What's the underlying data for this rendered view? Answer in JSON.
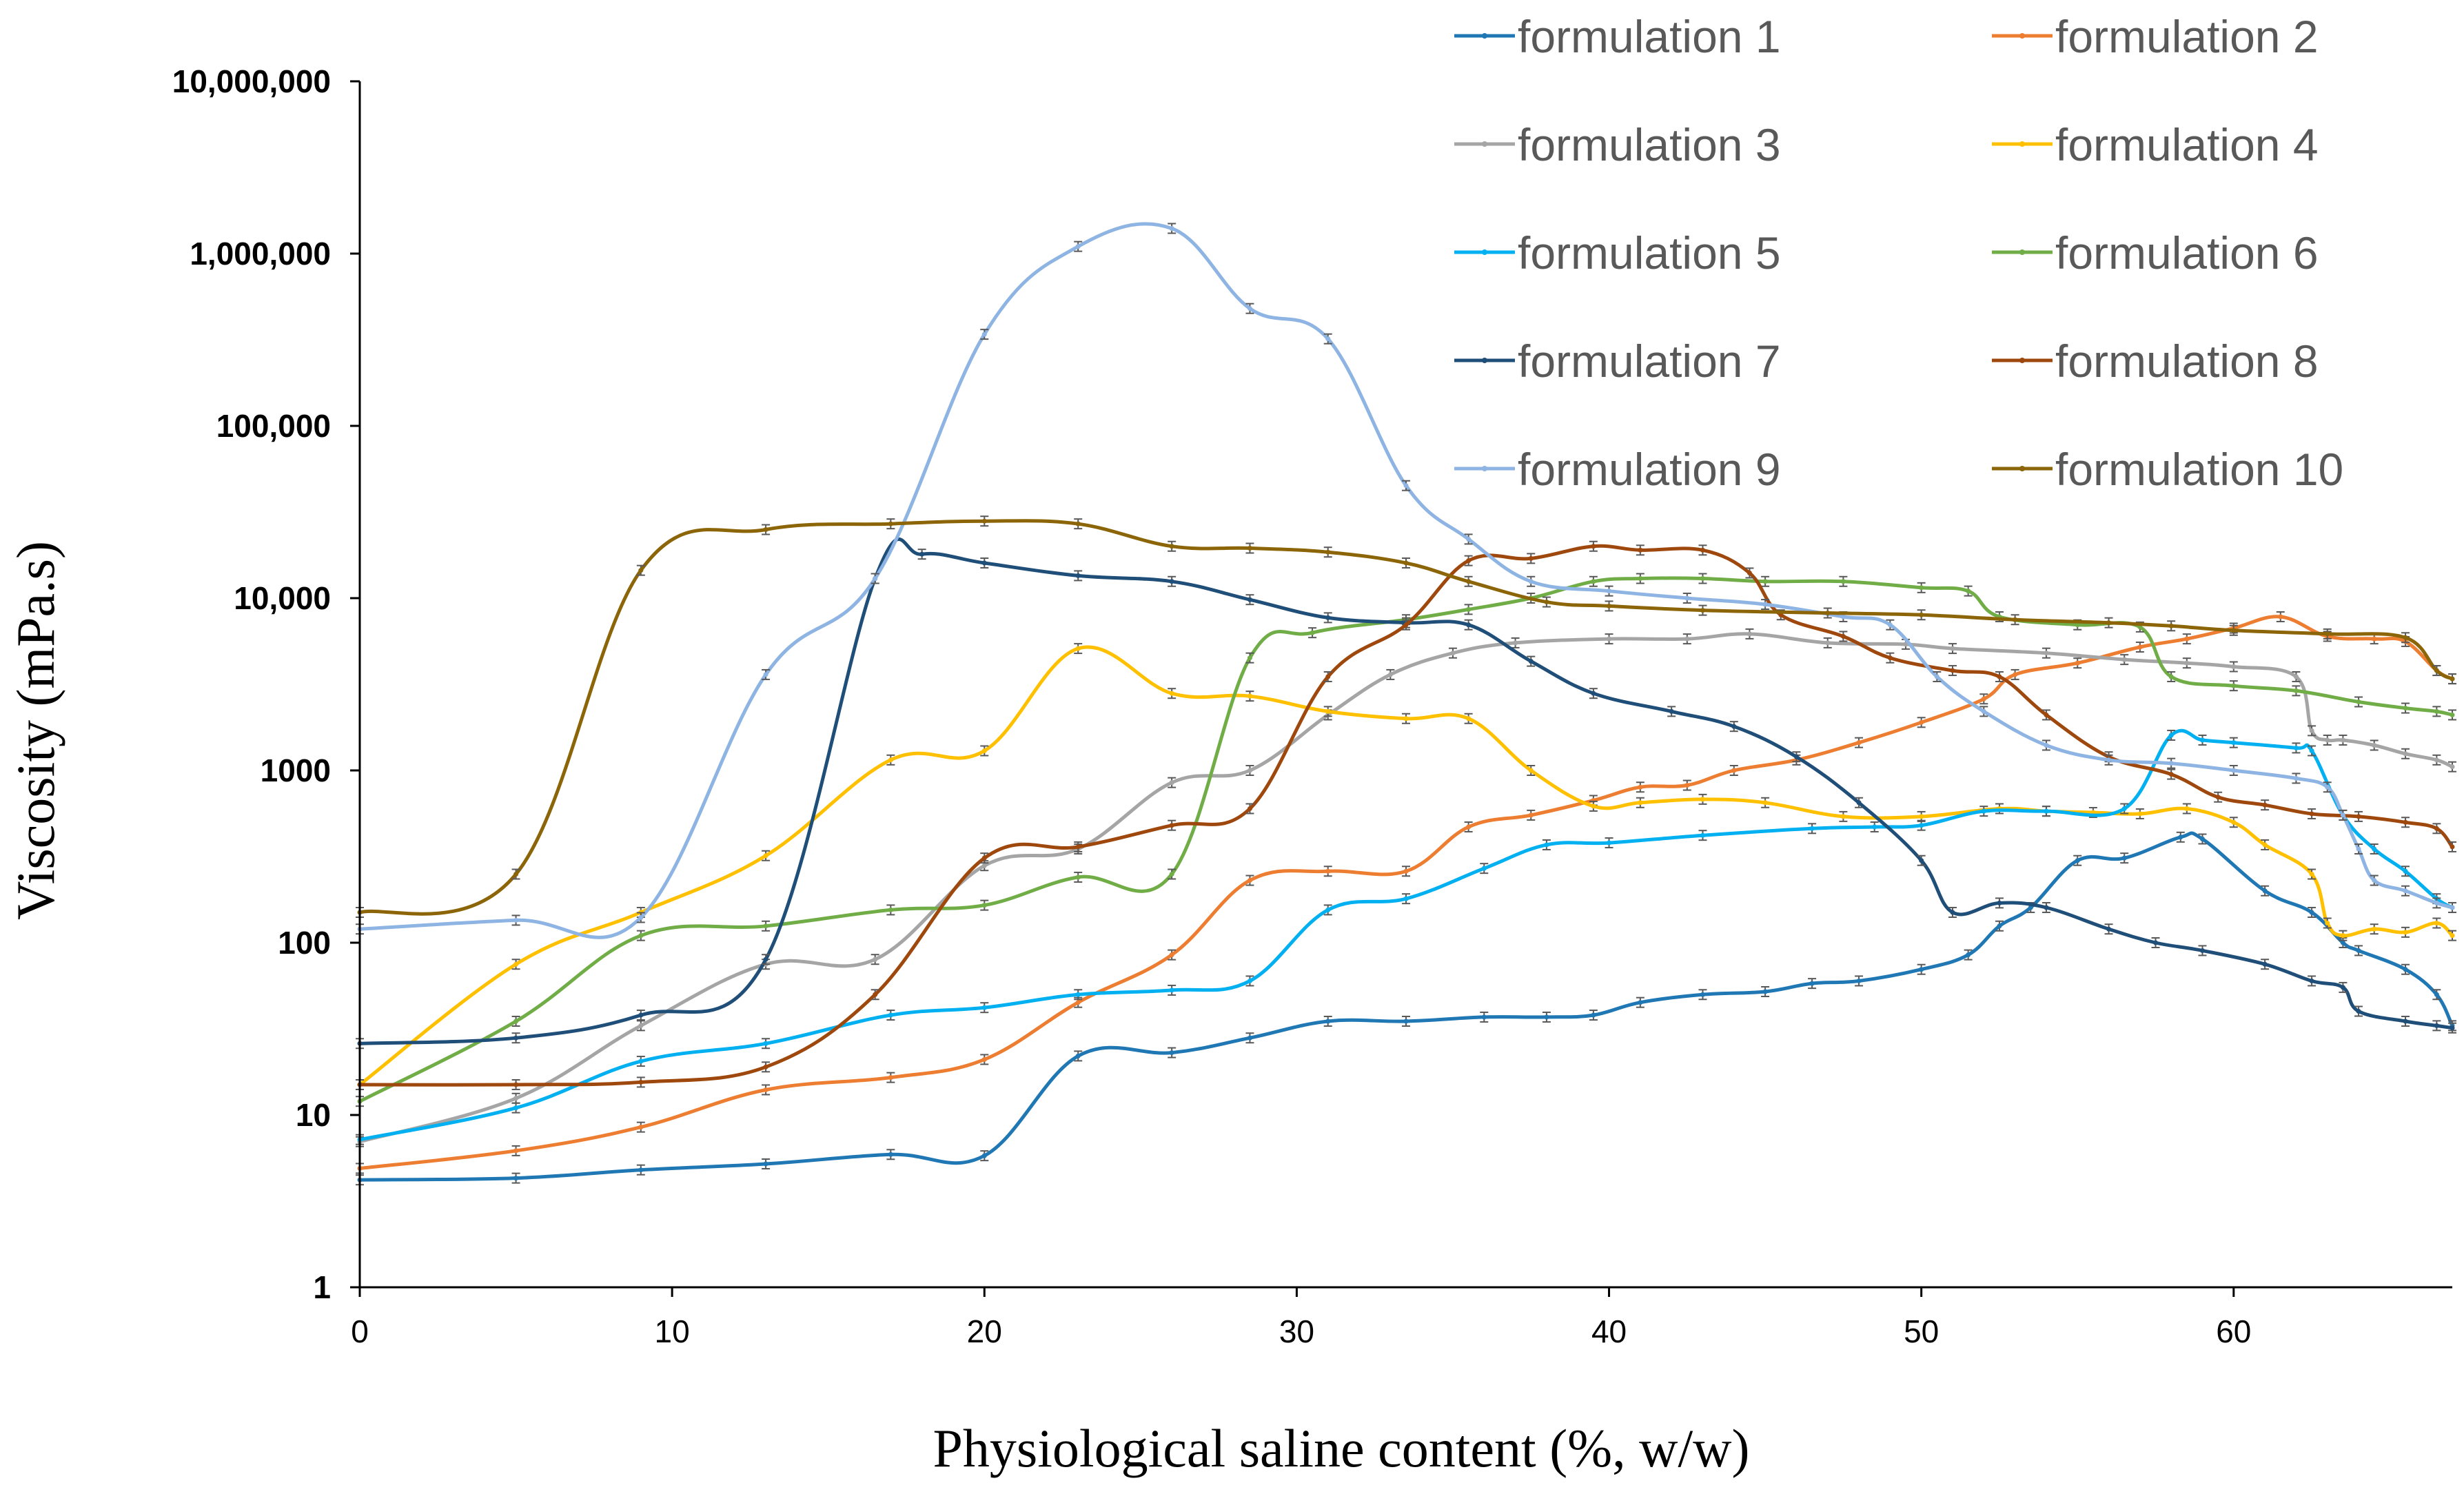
{
  "chart_data": {
    "type": "line",
    "title": "",
    "xlabel": "Physiological saline content (%, w/w)",
    "ylabel": "Viscosity (mPa.s)",
    "xlim": [
      0,
      67
    ],
    "ylim": [
      1,
      10000000
    ],
    "yscale": "log",
    "grid": false,
    "legend_position": "top-right",
    "x_ticks": [
      0,
      10,
      20,
      30,
      40,
      50,
      60
    ],
    "x_tick_labels": [
      "0",
      "10",
      "20",
      "30",
      "40",
      "50",
      "60"
    ],
    "y_ticks": [
      1,
      10,
      100,
      1000,
      10000,
      100000,
      1000000,
      10000000
    ],
    "y_tick_labels": [
      "1",
      "10",
      "100",
      "1000",
      "10,000",
      "100,000",
      "1,000,000",
      "10,000,000"
    ],
    "series": [
      {
        "name": "formulation 1",
        "color": "#1F77B4",
        "x": [
          0,
          5,
          9,
          13,
          17,
          20,
          23,
          26,
          28.5,
          31,
          33.5,
          36,
          38,
          39.5,
          41,
          43,
          45,
          46.5,
          48,
          50,
          51.5,
          52.5,
          53.5,
          55,
          56.5,
          58.3,
          59,
          61,
          62.5,
          63.5,
          64,
          65.5,
          66.5,
          67
        ],
        "y": [
          4.2,
          4.3,
          4.8,
          5.2,
          5.9,
          5.8,
          22,
          23,
          28,
          35,
          35,
          37,
          37,
          38,
          45,
          50,
          52,
          58,
          60,
          70,
          85,
          125,
          160,
          300,
          310,
          410,
          400,
          200,
          150,
          100,
          90,
          70,
          50,
          33
        ]
      },
      {
        "name": "formulation 2",
        "color": "#ED7D31",
        "x": [
          0,
          5,
          9,
          13,
          17,
          20,
          23,
          26,
          28.5,
          31,
          33.5,
          35.5,
          37.5,
          39.5,
          41,
          42.5,
          44,
          46,
          48,
          50,
          52,
          53,
          55,
          57,
          58.5,
          60,
          61.5,
          63,
          64.5,
          65.5,
          66.5,
          67
        ],
        "y": [
          4.9,
          6.2,
          8.5,
          14,
          16.5,
          21,
          45,
          85,
          230,
          260,
          260,
          470,
          550,
          670,
          800,
          820,
          1000,
          1150,
          1450,
          1900,
          2600,
          3600,
          4200,
          5200,
          5800,
          6700,
          7800,
          6000,
          5800,
          5600,
          3800,
          3400
        ]
      },
      {
        "name": "formulation 3",
        "color": "#A5A5A5",
        "x": [
          0,
          5,
          9,
          13,
          16.5,
          20,
          23,
          26,
          28.5,
          31,
          33,
          35,
          37,
          40,
          42.5,
          44.5,
          47,
          49.5,
          51,
          54,
          56.5,
          58.5,
          60,
          62,
          62.5,
          63,
          63.5,
          64.5,
          65.5,
          66.5,
          67
        ],
        "y": [
          7,
          12.5,
          33,
          75,
          80,
          280,
          350,
          850,
          1000,
          2100,
          3600,
          4800,
          5500,
          5800,
          5800,
          6200,
          5500,
          5400,
          5100,
          4800,
          4400,
          4200,
          4000,
          3500,
          1700,
          1500,
          1500,
          1400,
          1250,
          1150,
          1050
        ]
      },
      {
        "name": "formulation 4",
        "color": "#FFC000",
        "x": [
          0,
          5,
          9,
          13,
          17,
          20,
          23,
          26,
          28.5,
          31,
          33.5,
          35.5,
          37.5,
          39.5,
          41,
          43,
          45,
          47.5,
          50,
          52.5,
          54,
          55.5,
          57,
          58.5,
          60,
          61,
          62.5,
          63,
          63.5,
          64.5,
          65.5,
          66.5,
          67
        ],
        "y": [
          15,
          75,
          150,
          320,
          1150,
          1300,
          5100,
          2800,
          2700,
          2200,
          2000,
          2000,
          1000,
          620,
          650,
          680,
          650,
          540,
          540,
          600,
          580,
          570,
          560,
          600,
          500,
          370,
          250,
          130,
          110,
          120,
          115,
          130,
          110
        ]
      },
      {
        "name": "formulation 5",
        "color": "#00B0F0",
        "x": [
          0,
          5,
          9,
          13,
          17,
          20,
          23,
          26,
          28.5,
          31,
          33.5,
          36,
          38,
          40,
          43,
          46.5,
          48.5,
          50,
          52,
          54,
          56.5,
          58,
          59,
          60,
          62,
          62.5,
          63.5,
          64.5,
          65.5,
          66.5,
          67
        ],
        "y": [
          7.2,
          11,
          20.5,
          26,
          38,
          42,
          50,
          53,
          60,
          155,
          180,
          270,
          370,
          380,
          420,
          460,
          470,
          480,
          580,
          580,
          600,
          1600,
          1500,
          1450,
          1350,
          1300,
          550,
          350,
          260,
          180,
          160
        ]
      },
      {
        "name": "formulation 6",
        "color": "#70AD47",
        "x": [
          0,
          5,
          9,
          13,
          17,
          20,
          23,
          26,
          28.5,
          30.5,
          33.5,
          35.5,
          37.5,
          39.5,
          41,
          43,
          45,
          47.5,
          50,
          51.5,
          52.5,
          55,
          57,
          58,
          60,
          62,
          64,
          65.5,
          66.5,
          67
        ],
        "y": [
          12,
          35,
          110,
          125,
          155,
          165,
          240,
          250,
          4500,
          6300,
          7500,
          8600,
          10000,
          12500,
          13000,
          13000,
          12500,
          12500,
          11500,
          11000,
          7800,
          7000,
          6800,
          3500,
          3100,
          2900,
          2500,
          2300,
          2200,
          2100
        ]
      },
      {
        "name": "formulation 7",
        "color": "#1F4E79",
        "x": [
          0,
          5,
          9,
          13,
          16.5,
          18,
          20,
          23,
          26,
          28.5,
          31,
          33.5,
          35.5,
          37.5,
          39.5,
          42,
          44,
          46,
          48,
          50,
          51,
          52.5,
          54,
          56,
          57.5,
          59,
          61,
          62.5,
          63.5,
          64,
          65.5,
          66.5,
          67
        ],
        "y": [
          26,
          28,
          38,
          80,
          13000,
          18000,
          16000,
          13500,
          12500,
          9800,
          7700,
          7200,
          7000,
          4300,
          2800,
          2200,
          1800,
          1200,
          650,
          300,
          150,
          170,
          160,
          120,
          100,
          90,
          75,
          60,
          55,
          40,
          35,
          33,
          32
        ]
      },
      {
        "name": "formulation 8",
        "color": "#9E480E",
        "x": [
          0,
          5,
          9,
          13,
          16.5,
          20,
          23,
          26,
          28.5,
          31,
          33.5,
          35.5,
          37.5,
          39.5,
          41,
          43,
          44.5,
          45.5,
          47.5,
          49,
          51,
          52.5,
          54,
          56,
          58,
          59.5,
          61,
          62.5,
          64,
          65.5,
          66.5,
          67
        ],
        "y": [
          15,
          15,
          15.5,
          19,
          50,
          310,
          360,
          480,
          600,
          3500,
          7000,
          16500,
          17000,
          20000,
          19000,
          19000,
          14000,
          8000,
          6000,
          4500,
          3800,
          3500,
          2100,
          1200,
          950,
          700,
          630,
          560,
          540,
          500,
          460,
          360
        ]
      },
      {
        "name": "formulation 9",
        "color": "#8EB4E3",
        "x": [
          0,
          5,
          9,
          13,
          16.5,
          20,
          23,
          26,
          28.5,
          31,
          33.5,
          35.5,
          37.5,
          40,
          42.5,
          45,
          47.5,
          49,
          50.5,
          52,
          54,
          56,
          58,
          60,
          62,
          63,
          63.5,
          64,
          64.5,
          65.5,
          66.5,
          67
        ],
        "y": [
          120,
          135,
          140,
          3600,
          13000,
          340000,
          1100000,
          1400000,
          480000,
          320000,
          45000,
          22000,
          12500,
          11000,
          10000,
          9200,
          7800,
          7000,
          3500,
          2200,
          1400,
          1150,
          1100,
          1000,
          900,
          800,
          550,
          350,
          230,
          200,
          170,
          160
        ]
      },
      {
        "name": "formulation 10",
        "color": "#8B6508",
        "x": [
          0,
          5,
          9,
          13,
          17,
          20,
          23,
          26,
          28.5,
          31,
          33.5,
          35.5,
          38,
          40,
          43,
          47,
          50,
          53,
          56,
          58,
          60,
          63,
          65.5,
          66.5,
          67
        ],
        "y": [
          150,
          250,
          14500,
          25000,
          27000,
          28000,
          27000,
          20000,
          19500,
          18500,
          16000,
          12500,
          9500,
          9000,
          8500,
          8200,
          8000,
          7500,
          7200,
          6900,
          6500,
          6200,
          5900,
          3800,
          3400
        ]
      }
    ]
  }
}
